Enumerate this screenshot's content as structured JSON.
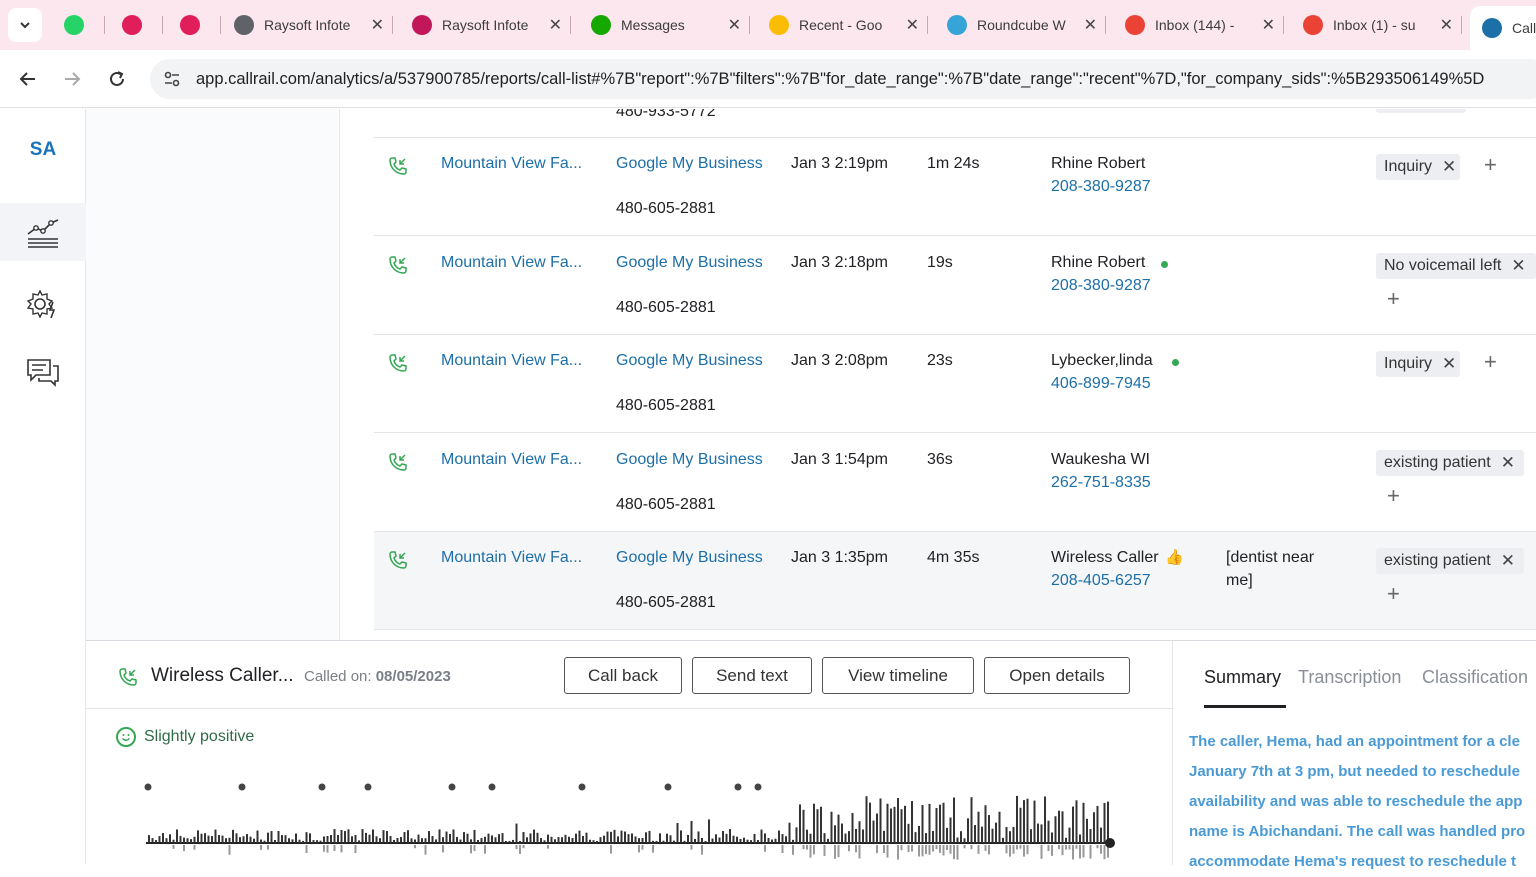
{
  "browser": {
    "tabs": [
      {
        "title": "",
        "icon": "whatsapp-icon",
        "color": "#25d366"
      },
      {
        "title": "",
        "icon": "slack-icon",
        "color": "#e01e5a"
      },
      {
        "title": "",
        "icon": "slack-icon",
        "color": "#e01e5a"
      },
      {
        "title": "Raysoft Infote",
        "icon": "globe-icon",
        "color": "#5f6368"
      },
      {
        "title": "Raysoft Infote",
        "icon": "graduation-cap-icon",
        "color": "#c2185b"
      },
      {
        "title": "Messages",
        "icon": "upwork-icon",
        "color": "#14a800"
      },
      {
        "title": "Recent - Goo",
        "icon": "google-drive-icon",
        "color": "#fbbc04"
      },
      {
        "title": "Roundcube W",
        "icon": "roundcube-icon",
        "color": "#37a4d8"
      },
      {
        "title": "Inbox (144) -",
        "icon": "gmail-icon",
        "color": "#ea4335"
      },
      {
        "title": "Inbox (1) - su",
        "icon": "gmail-icon",
        "color": "#ea4335"
      },
      {
        "title": "Call",
        "icon": "phone-icon",
        "color": "#1d6fa8"
      }
    ],
    "url": "app.callrail.com/analytics/a/537900785/reports/call-list#%7B\"report\":%7B\"filters\":%7B\"for_date_range\":%7B\"date_range\":\"recent\"%7D,\"for_company_sids\":%5B293506149%5D"
  },
  "sidebar": {
    "logo": "SA",
    "items": [
      "analytics-icon",
      "settings-bolt-icon",
      "chat-icon"
    ]
  },
  "calls": {
    "partial_top_number": "480-933-5772",
    "rows": [
      {
        "company": "Mountain View Fa...",
        "source": "Google My Business",
        "tracking": "480-605-2881",
        "time": "Jan 3 2:19pm",
        "duration": "1m 24s",
        "caller": "Rhine Robert",
        "phone": "208-380-9287",
        "keywords": "",
        "tags": [
          "Inquiry"
        ],
        "dot": false,
        "thumb": false
      },
      {
        "company": "Mountain View Fa...",
        "source": "Google My Business",
        "tracking": "480-605-2881",
        "time": "Jan 3 2:18pm",
        "duration": "19s",
        "caller": "Rhine Robert",
        "phone": "208-380-9287",
        "keywords": "",
        "tags": [
          "No voicemail left"
        ],
        "dot": true,
        "thumb": false
      },
      {
        "company": "Mountain View Fa...",
        "source": "Google My Business",
        "tracking": "480-605-2881",
        "time": "Jan 3 2:08pm",
        "duration": "23s",
        "caller": "Lybecker,linda",
        "phone": "406-899-7945",
        "keywords": "",
        "tags": [
          "Inquiry"
        ],
        "dot": true,
        "thumb": false
      },
      {
        "company": "Mountain View Fa...",
        "source": "Google My Business",
        "tracking": "480-605-2881",
        "time": "Jan 3 1:54pm",
        "duration": "36s",
        "caller": "Waukesha WI",
        "phone": "262-751-8335",
        "keywords": "",
        "tags": [
          "existing patient"
        ],
        "dot": false,
        "thumb": false
      },
      {
        "company": "Mountain View Fa...",
        "source": "Google My Business",
        "tracking": "480-605-2881",
        "time": "Jan 3 1:35pm",
        "duration": "4m 35s",
        "caller": "Wireless Caller",
        "phone": "208-405-6257",
        "keywords": "[dentist near",
        "keywords2": "me]",
        "tags": [
          "existing patient"
        ],
        "dot": false,
        "thumb": true
      }
    ]
  },
  "detail": {
    "caller": "Wireless Caller...",
    "called_label": "Called on:",
    "called_date": "08/05/2023",
    "buttons": {
      "call_back": "Call back",
      "send_text": "Send text",
      "view_timeline": "View timeline",
      "open_details": "Open details"
    },
    "sentiment": "Slightly positive",
    "tabs": {
      "summary": "Summary",
      "transcription": "Transcription",
      "classification": "Classification"
    },
    "summary_lines": [
      "The caller, Hema, had an appointment for a cle",
      "January 7th at 3 pm, but needed to reschedule",
      "availability and was able to reschedule the app",
      "name is Abichandani. The call was handled pro",
      "accommodate Hema's request to reschedule t"
    ]
  }
}
